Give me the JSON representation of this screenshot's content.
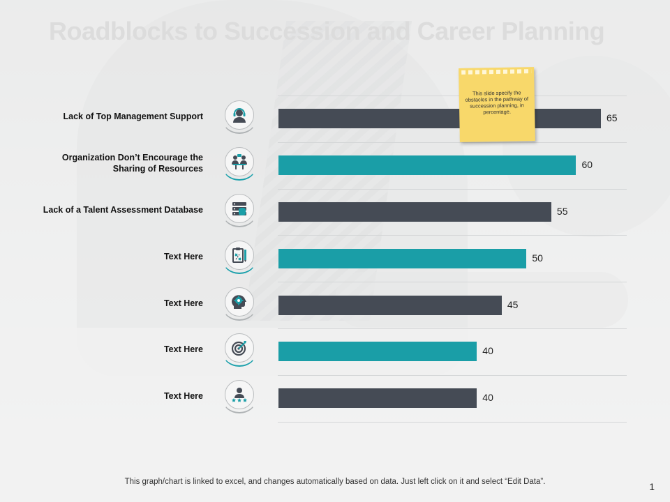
{
  "slide": {
    "title": "Roadblocks to Succession and Career Planning",
    "note": "This slide specify the obstacles in the pathway of succession planning, in percentage.",
    "footer": "This graph/chart is linked to excel, and changes automatically based on data. Just left click on it and select “Edit Data”.",
    "page_number": "1"
  },
  "colors": {
    "dark": "#454b55",
    "teal": "#1a9ea7"
  },
  "icons": [
    "headset-person-icon",
    "people-meeting-icon",
    "database-icon",
    "clipboard-pencil-icon",
    "gear-head-icon",
    "target-icon",
    "user-stars-icon"
  ],
  "chart_data": {
    "type": "bar",
    "orientation": "horizontal",
    "categories": [
      "Lack of Top Management Support",
      "Organization Don’t Encourage the Sharing of Resources",
      "Lack of a Talent Assessment Database",
      "Text Here",
      "Text Here",
      "Text Here",
      "Text Here"
    ],
    "values": [
      65,
      60,
      55,
      50,
      45,
      40,
      40
    ],
    "bar_colors": [
      "dark",
      "teal",
      "dark",
      "teal",
      "dark",
      "teal",
      "dark"
    ],
    "xlim": [
      0,
      70
    ],
    "grid": true
  }
}
